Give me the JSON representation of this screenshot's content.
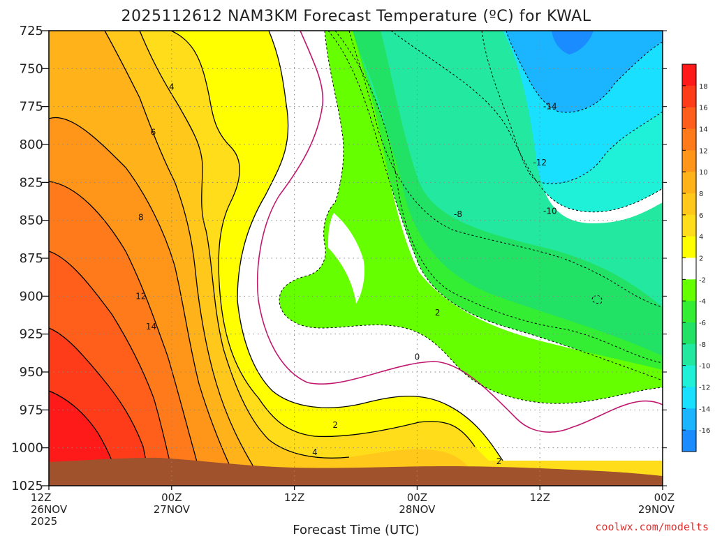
{
  "title": "2025112612 NAM3KM Forecast Temperature (ºC) for KWAL",
  "credit": "coolwx.com/modelts",
  "colors": {
    "credit": "#e0302f",
    "ground": "#a0522d",
    "frame": "#000000"
  },
  "chart_data": {
    "type": "heatmap",
    "title": "2025112612 NAM3KM Forecast Temperature (ºC) for KWAL",
    "xlabel": "Forecast Time (UTC)",
    "ylabel": "",
    "x_ticks": [
      {
        "hours": 0,
        "lines": [
          "12Z",
          "26NOV",
          "2025"
        ]
      },
      {
        "hours": 12,
        "lines": [
          "00Z",
          "27NOV"
        ]
      },
      {
        "hours": 24,
        "lines": [
          "12Z"
        ]
      },
      {
        "hours": 36,
        "lines": [
          "00Z",
          "28NOV"
        ]
      },
      {
        "hours": 48,
        "lines": [
          "12Z"
        ]
      },
      {
        "hours": 60,
        "lines": [
          "00Z",
          "29NOV"
        ]
      }
    ],
    "xlim_hours": [
      0,
      60
    ],
    "y_ticks": [
      "725",
      "750",
      "775",
      "800",
      "825",
      "850",
      "875",
      "900",
      "925",
      "950",
      "975",
      "1000",
      "1025"
    ],
    "ylim_hPa": [
      725,
      1025
    ],
    "grid": true,
    "colorbar": {
      "ticks": [
        "18",
        "16",
        "14",
        "12",
        "10",
        "8",
        "6",
        "4",
        "2",
        "-2",
        "-4",
        "-6",
        "-8",
        "-10",
        "-12",
        "-14",
        "-16"
      ],
      "bands": [
        {
          "range": [
            18,
            20
          ],
          "color": "#ff1a1a"
        },
        {
          "range": [
            16,
            18
          ],
          "color": "#ff3c1a"
        },
        {
          "range": [
            14,
            16
          ],
          "color": "#ff5f1a"
        },
        {
          "range": [
            12,
            14
          ],
          "color": "#ff7a1a"
        },
        {
          "range": [
            10,
            12
          ],
          "color": "#ff961a"
        },
        {
          "range": [
            8,
            10
          ],
          "color": "#ffb21a"
        },
        {
          "range": [
            6,
            8
          ],
          "color": "#ffc81a"
        },
        {
          "range": [
            4,
            6
          ],
          "color": "#ffdd1a"
        },
        {
          "range": [
            2,
            4
          ],
          "color": "#ffff00"
        },
        {
          "range": [
            -2,
            2
          ],
          "color": "#ffffff"
        },
        {
          "range": [
            -4,
            -2
          ],
          "color": "#66ff00"
        },
        {
          "range": [
            -6,
            -4
          ],
          "color": "#33ee33"
        },
        {
          "range": [
            -8,
            -6
          ],
          "color": "#22e266"
        },
        {
          "range": [
            -10,
            -8
          ],
          "color": "#22e8a0"
        },
        {
          "range": [
            -12,
            -10
          ],
          "color": "#1ff0d8"
        },
        {
          "range": [
            -14,
            -12
          ],
          "color": "#1ae0ff"
        },
        {
          "range": [
            -16,
            -14
          ],
          "color": "#1ab4ff"
        },
        {
          "range": [
            -18,
            -16
          ],
          "color": "#1a8cff"
        }
      ]
    },
    "contour_labels": [
      {
        "text": "4",
        "hours": 12.0,
        "hPa": 762
      },
      {
        "text": "6",
        "hours": 10.2,
        "hPa": 792
      },
      {
        "text": "8",
        "hours": 9.0,
        "hPa": 848
      },
      {
        "text": "12",
        "hours": 9.0,
        "hPa": 900
      },
      {
        "text": "14",
        "hours": 10.0,
        "hPa": 920
      },
      {
        "text": "2",
        "hours": 28.0,
        "hPa": 985
      },
      {
        "text": "4",
        "hours": 26.0,
        "hPa": 1003
      },
      {
        "text": "0",
        "hours": 36.0,
        "hPa": 940
      },
      {
        "text": "2",
        "hours": 38.0,
        "hPa": 911
      },
      {
        "text": "2",
        "hours": 44.0,
        "hPa": 1009
      },
      {
        "text": "-8",
        "hours": 40.0,
        "hPa": 846
      },
      {
        "text": "-10",
        "hours": 49.0,
        "hPa": 844
      },
      {
        "text": "-12",
        "hours": 48.0,
        "hPa": 812
      },
      {
        "text": "-14",
        "hours": 49.0,
        "hPa": 775
      }
    ]
  }
}
